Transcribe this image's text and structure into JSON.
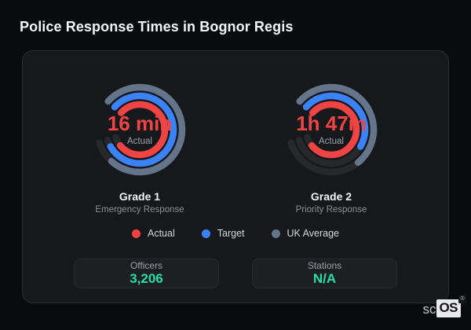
{
  "page_title": "Police Response Times in Bognor Regis",
  "colors": {
    "actual": "#ef4444",
    "target": "#3b82f6",
    "uk_average": "#64748b",
    "track": "#26282b",
    "stat_value": "#26dfa6"
  },
  "gauges": [
    {
      "value_label": "16 min",
      "center_sublabel": "Actual",
      "title": "Grade 1",
      "subtitle": "Emergency Response",
      "rings": [
        {
          "color_key": "uk_average",
          "fraction": 0.9
        },
        {
          "color_key": "target",
          "fraction": 0.96
        },
        {
          "color_key": "actual",
          "fraction": 0.93
        }
      ]
    },
    {
      "value_label": "1h 47m",
      "center_sublabel": "Actual",
      "title": "Grade 2",
      "subtitle": "Priority Response",
      "rings": [
        {
          "color_key": "uk_average",
          "fraction": 0.63
        },
        {
          "color_key": "target",
          "fraction": 0.56
        },
        {
          "color_key": "actual",
          "fraction": 0.93
        }
      ]
    }
  ],
  "legend": [
    {
      "label": "Actual",
      "color_key": "actual"
    },
    {
      "label": "Target",
      "color_key": "target"
    },
    {
      "label": "UK Average",
      "color_key": "uk_average"
    }
  ],
  "stats": [
    {
      "label": "Officers",
      "value": "3,206"
    },
    {
      "label": "Stations",
      "value": "N/A"
    }
  ],
  "logo": {
    "prefix": "sc",
    "suffix": "OS",
    "registered": "®"
  }
}
